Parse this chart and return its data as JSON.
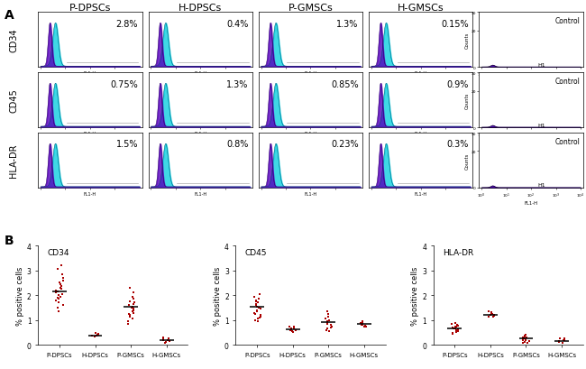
{
  "panel_labels_col": [
    "P-DPSCs",
    "H-DPSCs",
    "P-GMSCs",
    "H-GMSCs"
  ],
  "panel_labels_row": [
    "CD34",
    "CD45",
    "HLA-DR"
  ],
  "percentages": [
    [
      "2.8%",
      "0.4%",
      "1.3%",
      "0.15%"
    ],
    [
      "0.75%",
      "1.3%",
      "0.85%",
      "0.9%"
    ],
    [
      "1.5%",
      "0.8%",
      "0.23%",
      "0.3%"
    ]
  ],
  "dot_titles": [
    "CD34",
    "CD45",
    "HLA-DR"
  ],
  "dot_ylabel": "% positive cells",
  "dot_xlabel_groups": [
    "P-DPSCs",
    "H-DPSCs",
    "P-GMSCs",
    "H-GMSCs"
  ],
  "dot_ylim": 4,
  "dot_color": "#aa0000",
  "dot_data": {
    "CD34": {
      "P-DPSCs": [
        3.2,
        3.05,
        2.85,
        2.7,
        2.6,
        2.5,
        2.45,
        2.38,
        2.3,
        2.25,
        2.2,
        2.15,
        2.1,
        2.05,
        2.0,
        1.95,
        1.9,
        1.85,
        1.8,
        1.7,
        1.6,
        1.5,
        1.35
      ],
      "H-DPSCs": [
        0.48,
        0.44,
        0.42,
        0.4,
        0.38,
        0.36,
        0.34
      ],
      "P-GMSCs": [
        2.3,
        2.1,
        1.95,
        1.85,
        1.75,
        1.7,
        1.65,
        1.6,
        1.55,
        1.5,
        1.45,
        1.4,
        1.35,
        1.3,
        1.25,
        1.2,
        1.15,
        1.05,
        0.95,
        0.85
      ],
      "H-GMSCs": [
        0.3,
        0.25,
        0.22,
        0.2,
        0.18,
        0.15,
        0.12,
        0.1
      ]
    },
    "CD45": {
      "P-DPSCs": [
        2.05,
        1.95,
        1.85,
        1.8,
        1.75,
        1.7,
        1.65,
        1.6,
        1.55,
        1.5,
        1.45,
        1.4,
        1.35,
        1.3,
        1.25,
        1.2,
        1.15,
        1.1,
        1.05,
        1.0,
        0.95
      ],
      "H-DPSCs": [
        0.75,
        0.72,
        0.68,
        0.65,
        0.62,
        0.6,
        0.58,
        0.55,
        0.52
      ],
      "P-GMSCs": [
        1.35,
        1.25,
        1.15,
        1.05,
        1.0,
        0.95,
        0.9,
        0.85,
        0.8,
        0.75,
        0.7,
        0.65,
        0.6,
        0.55
      ],
      "H-GMSCs": [
        0.95,
        0.9,
        0.88,
        0.85,
        0.82,
        0.8,
        0.78,
        0.75,
        0.72
      ]
    },
    "HLA-DR": {
      "P-DPSCs": [
        0.9,
        0.85,
        0.82,
        0.78,
        0.75,
        0.72,
        0.7,
        0.68,
        0.65,
        0.62,
        0.6,
        0.58,
        0.55,
        0.52,
        0.5,
        0.45
      ],
      "H-DPSCs": [
        1.35,
        1.32,
        1.28,
        1.25,
        1.22,
        1.2,
        1.18,
        1.15,
        1.12
      ],
      "P-GMSCs": [
        0.42,
        0.38,
        0.35,
        0.32,
        0.3,
        0.27,
        0.25,
        0.22,
        0.2,
        0.18,
        0.15,
        0.12,
        0.1,
        0.08
      ],
      "H-GMSCs": [
        0.28,
        0.25,
        0.22,
        0.2,
        0.18,
        0.15,
        0.12,
        0.1,
        0.08
      ]
    }
  },
  "dot_means": {
    "CD34": [
      2.15,
      0.38,
      1.55,
      0.18
    ],
    "CD45": [
      1.55,
      0.63,
      0.92,
      0.83
    ],
    "HLA-DR": [
      0.65,
      1.22,
      0.25,
      0.17
    ]
  },
  "hist_color_cyan": "#00ccdd",
  "hist_color_purple": "#5500bb",
  "control_color": "#4400aa",
  "bg_color": "#ffffff",
  "pct_fontsize": 7,
  "col_label_fontsize": 8,
  "row_label_fontsize": 7
}
